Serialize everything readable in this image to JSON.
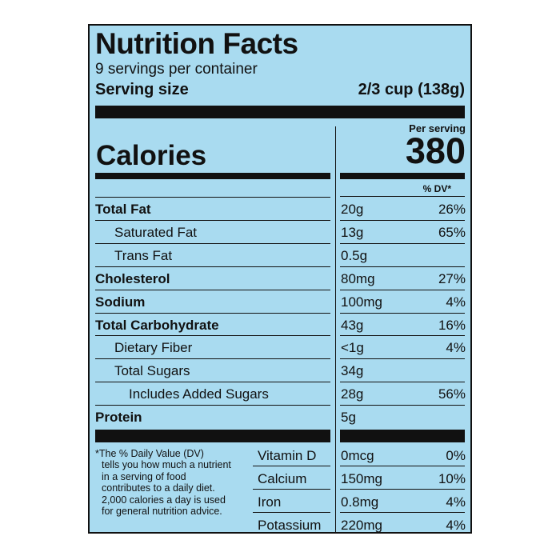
{
  "header": {
    "title": "Nutrition Facts",
    "servings": "9 servings per container",
    "serving_size_label": "Serving size",
    "serving_size_value": "2/3 cup (138g)"
  },
  "calories": {
    "per_serving_label": "Per serving",
    "label": "Calories",
    "value": "380",
    "dv_header": "% DV*"
  },
  "nutrients": [
    {
      "name": "Total Fat",
      "amount": "20g",
      "dv": "26%"
    },
    {
      "name": "Saturated Fat",
      "amount": "13g",
      "dv": "65%"
    },
    {
      "name": "Trans Fat",
      "amount": "0.5g",
      "dv": ""
    },
    {
      "name": "Cholesterol",
      "amount": "80mg",
      "dv": "27%"
    },
    {
      "name": "Sodium",
      "amount": "100mg",
      "dv": "4%"
    },
    {
      "name": "Total Carbohydrate",
      "amount": "43g",
      "dv": "16%"
    },
    {
      "name": "Dietary Fiber",
      "amount": "<1g",
      "dv": "4%"
    },
    {
      "name": "Total Sugars",
      "amount": "34g",
      "dv": ""
    },
    {
      "name": "Includes Added Sugars",
      "amount": "28g",
      "dv": "56%"
    },
    {
      "name": "Protein",
      "amount": "5g",
      "dv": ""
    }
  ],
  "vitamins": [
    {
      "name": "Vitamin D",
      "amount": "0mcg",
      "dv": "0%"
    },
    {
      "name": "Calcium",
      "amount": "150mg",
      "dv": "10%"
    },
    {
      "name": "Iron",
      "amount": "0.8mg",
      "dv": "4%"
    },
    {
      "name": "Potassium",
      "amount": "220mg",
      "dv": "4%"
    }
  ],
  "footnote": {
    "line1": "*The % Daily Value (DV)",
    "rest": "tells you how much a nutrient in a serving of food contributes to a daily diet. 2,000 calories a day is used for general nutrition advice."
  }
}
